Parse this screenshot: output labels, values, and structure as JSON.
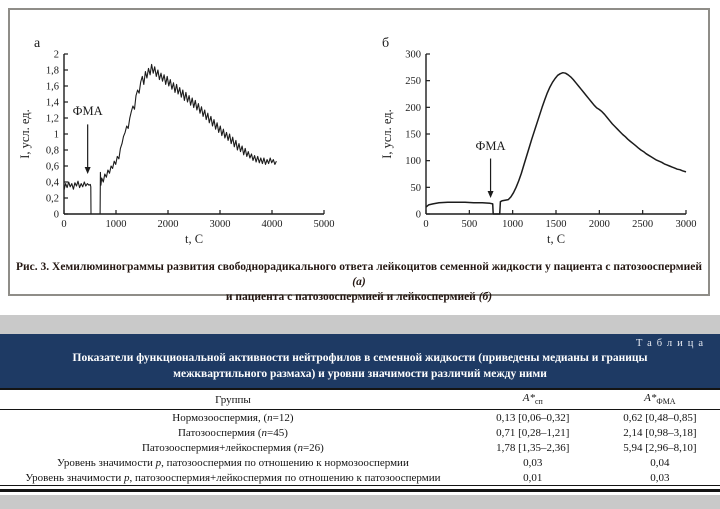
{
  "figure": {
    "caption_part1": "Рис. 3. Хемилюминограммы развития свободнорадикального ответа лейкоцитов семенной жидкости у пациента с патозооспермией ",
    "caption_a": "(а)",
    "caption_part2": "и пациента с патозооспермией и лейкоспермией ",
    "caption_b": "(б)"
  },
  "chart_data": [
    {
      "panel_label": "а",
      "type": "line",
      "xlabel": "t, C",
      "ylabel": "I, усл. ед.",
      "xlim": [
        0,
        5000
      ],
      "ylim": [
        0,
        2
      ],
      "xticks": [
        0,
        1000,
        2000,
        3000,
        4000,
        5000
      ],
      "xtick_labels": [
        "0",
        "1000",
        "2000",
        "3000",
        "4000",
        "5000"
      ],
      "yticks": [
        0,
        0.2,
        0.4,
        0.6,
        0.8,
        1,
        1.2,
        1.4,
        1.6,
        1.8,
        2
      ],
      "ytick_labels": [
        "0",
        "0,2",
        "0,4",
        "0,6",
        "0,8",
        "1",
        "1,2",
        "1,4",
        "1,6",
        "1,8",
        "2"
      ],
      "legend": "off",
      "grid": "off",
      "stroke_width": 1.1,
      "annotation": {
        "text": "ФМА",
        "x": 455,
        "label_y": 1.24,
        "arrow_top_y": 1.12,
        "arrow_tip_y": 0.5
      },
      "series": [
        {
          "name": "хемилюминограмма пациента с патозооспермией",
          "points": [
            [
              0,
              0.3
            ],
            [
              30,
              0.38
            ],
            [
              60,
              0.33
            ],
            [
              90,
              0.4
            ],
            [
              120,
              0.34
            ],
            [
              150,
              0.38
            ],
            [
              180,
              0.31
            ],
            [
              210,
              0.39
            ],
            [
              240,
              0.35
            ],
            [
              270,
              0.41
            ],
            [
              300,
              0.33
            ],
            [
              330,
              0.38
            ],
            [
              360,
              0.34
            ],
            [
              390,
              0.4
            ],
            [
              420,
              0.35
            ],
            [
              450,
              0.38
            ],
            [
              480,
              0.36
            ],
            [
              505,
              0.37
            ],
            [
              515,
              0.34
            ],
            [
              520,
              0
            ],
            [
              695,
              0
            ],
            [
              700,
              0.52
            ],
            [
              710,
              0.36
            ],
            [
              725,
              0.45
            ],
            [
              755,
              0.4
            ],
            [
              785,
              0.5
            ],
            [
              815,
              0.46
            ],
            [
              845,
              0.55
            ],
            [
              875,
              0.51
            ],
            [
              905,
              0.6
            ],
            [
              935,
              0.57
            ],
            [
              965,
              0.66
            ],
            [
              995,
              0.62
            ],
            [
              1025,
              0.72
            ],
            [
              1055,
              0.69
            ],
            [
              1085,
              0.82
            ],
            [
              1115,
              0.88
            ],
            [
              1145,
              0.97
            ],
            [
              1175,
              1.02
            ],
            [
              1205,
              1.1
            ],
            [
              1235,
              1.07
            ],
            [
              1265,
              1.2
            ],
            [
              1295,
              1.28
            ],
            [
              1325,
              1.35
            ],
            [
              1355,
              1.31
            ],
            [
              1385,
              1.48
            ],
            [
              1415,
              1.55
            ],
            [
              1445,
              1.51
            ],
            [
              1475,
              1.65
            ],
            [
              1505,
              1.72
            ],
            [
              1535,
              1.62
            ],
            [
              1565,
              1.78
            ],
            [
              1595,
              1.7
            ],
            [
              1625,
              1.82
            ],
            [
              1655,
              1.74
            ],
            [
              1685,
              1.87
            ],
            [
              1715,
              1.76
            ],
            [
              1745,
              1.84
            ],
            [
              1775,
              1.72
            ],
            [
              1805,
              1.8
            ],
            [
              1835,
              1.68
            ],
            [
              1865,
              1.76
            ],
            [
              1895,
              1.66
            ],
            [
              1925,
              1.74
            ],
            [
              1955,
              1.62
            ],
            [
              1985,
              1.72
            ],
            [
              2015,
              1.6
            ],
            [
              2045,
              1.68
            ],
            [
              2075,
              1.56
            ],
            [
              2105,
              1.64
            ],
            [
              2135,
              1.52
            ],
            [
              2165,
              1.62
            ],
            [
              2195,
              1.5
            ],
            [
              2225,
              1.58
            ],
            [
              2255,
              1.46
            ],
            [
              2285,
              1.55
            ],
            [
              2315,
              1.42
            ],
            [
              2345,
              1.52
            ],
            [
              2375,
              1.4
            ],
            [
              2405,
              1.48
            ],
            [
              2435,
              1.36
            ],
            [
              2465,
              1.45
            ],
            [
              2495,
              1.33
            ],
            [
              2525,
              1.42
            ],
            [
              2555,
              1.3
            ],
            [
              2585,
              1.38
            ],
            [
              2615,
              1.26
            ],
            [
              2645,
              1.34
            ],
            [
              2675,
              1.22
            ],
            [
              2705,
              1.3
            ],
            [
              2735,
              1.18
            ],
            [
              2765,
              1.26
            ],
            [
              2795,
              1.14
            ],
            [
              2825,
              1.22
            ],
            [
              2855,
              1.1
            ],
            [
              2885,
              1.18
            ],
            [
              2915,
              1.06
            ],
            [
              2945,
              1.14
            ],
            [
              2975,
              1.02
            ],
            [
              3005,
              1.1
            ],
            [
              3035,
              0.98
            ],
            [
              3065,
              1.06
            ],
            [
              3095,
              0.95
            ],
            [
              3125,
              1.02
            ],
            [
              3155,
              0.92
            ],
            [
              3185,
              1.0
            ],
            [
              3215,
              0.88
            ],
            [
              3245,
              0.96
            ],
            [
              3275,
              0.84
            ],
            [
              3305,
              0.92
            ],
            [
              3335,
              0.8
            ],
            [
              3365,
              0.88
            ],
            [
              3395,
              0.78
            ],
            [
              3425,
              0.85
            ],
            [
              3455,
              0.74
            ],
            [
              3485,
              0.82
            ],
            [
              3515,
              0.72
            ],
            [
              3545,
              0.78
            ],
            [
              3575,
              0.7
            ],
            [
              3605,
              0.75
            ],
            [
              3635,
              0.67
            ],
            [
              3665,
              0.73
            ],
            [
              3695,
              0.65
            ],
            [
              3725,
              0.72
            ],
            [
              3755,
              0.64
            ],
            [
              3785,
              0.7
            ],
            [
              3815,
              0.63
            ],
            [
              3845,
              0.7
            ],
            [
              3875,
              0.62
            ],
            [
              3905,
              0.68
            ],
            [
              3935,
              0.63
            ],
            [
              3965,
              0.7
            ],
            [
              3995,
              0.64
            ],
            [
              4025,
              0.68
            ],
            [
              4055,
              0.62
            ],
            [
              4085,
              0.66
            ]
          ]
        }
      ]
    },
    {
      "panel_label": "б",
      "type": "line",
      "xlabel": "t, C",
      "ylabel": "I, усл. ед.",
      "xlim": [
        0,
        3000
      ],
      "ylim": [
        0,
        300
      ],
      "xticks": [
        0,
        500,
        1000,
        1500,
        2000,
        2500,
        3000
      ],
      "xtick_labels": [
        "0",
        "500",
        "1000",
        "1500",
        "2000",
        "2500",
        "3000"
      ],
      "yticks": [
        0,
        50,
        100,
        150,
        200,
        250,
        300
      ],
      "ytick_labels": [
        "0",
        "50",
        "100",
        "150",
        "200",
        "250",
        "300"
      ],
      "legend": "off",
      "grid": "off",
      "stroke_width": 1.5,
      "annotation": {
        "text": "ФМА",
        "x": 745,
        "label_y": 120,
        "arrow_top_y": 104,
        "arrow_tip_y": 30
      },
      "series": [
        {
          "name": "хемилюминограмма пациента с патозооспермией и лейкоспермией",
          "points": [
            [
              0,
              13
            ],
            [
              30,
              17
            ],
            [
              80,
              19
            ],
            [
              150,
              21
            ],
            [
              250,
              22
            ],
            [
              350,
              22
            ],
            [
              450,
              22
            ],
            [
              550,
              21
            ],
            [
              650,
              21
            ],
            [
              740,
              20
            ],
            [
              770,
              19
            ],
            [
              775,
              0
            ],
            [
              850,
              0
            ],
            [
              858,
              23
            ],
            [
              880,
              25
            ],
            [
              920,
              26
            ],
            [
              950,
              27
            ],
            [
              980,
              32
            ],
            [
              1010,
              40
            ],
            [
              1040,
              50
            ],
            [
              1070,
              62
            ],
            [
              1100,
              76
            ],
            [
              1130,
              92
            ],
            [
              1160,
              108
            ],
            [
              1190,
              124
            ],
            [
              1220,
              140
            ],
            [
              1250,
              155
            ],
            [
              1280,
              170
            ],
            [
              1310,
              185
            ],
            [
              1340,
              200
            ],
            [
              1370,
              214
            ],
            [
              1400,
              227
            ],
            [
              1430,
              238
            ],
            [
              1460,
              247
            ],
            [
              1490,
              254
            ],
            [
              1520,
              260
            ],
            [
              1550,
              263
            ],
            [
              1580,
              265
            ],
            [
              1610,
              264
            ],
            [
              1640,
              261
            ],
            [
              1670,
              257
            ],
            [
              1700,
              252
            ],
            [
              1730,
              246
            ],
            [
              1760,
              240
            ],
            [
              1790,
              234
            ],
            [
              1820,
              228
            ],
            [
              1850,
              222
            ],
            [
              1880,
              216
            ],
            [
              1910,
              210
            ],
            [
              1940,
              204
            ],
            [
              1970,
              199
            ],
            [
              2000,
              196
            ],
            [
              2030,
              192
            ],
            [
              2060,
              187
            ],
            [
              2090,
              181
            ],
            [
              2120,
              175
            ],
            [
              2150,
              169
            ],
            [
              2180,
              164
            ],
            [
              2210,
              159
            ],
            [
              2240,
              154
            ],
            [
              2270,
              149
            ],
            [
              2300,
              145
            ],
            [
              2330,
              140
            ],
            [
              2360,
              136
            ],
            [
              2390,
              132
            ],
            [
              2420,
              128
            ],
            [
              2450,
              124
            ],
            [
              2480,
              120
            ],
            [
              2510,
              117
            ],
            [
              2540,
              113
            ],
            [
              2570,
              110
            ],
            [
              2600,
              107
            ],
            [
              2630,
              104
            ],
            [
              2660,
              101
            ],
            [
              2690,
              99
            ],
            [
              2720,
              97
            ],
            [
              2750,
              94
            ],
            [
              2780,
              92
            ],
            [
              2810,
              90
            ],
            [
              2840,
              88
            ],
            [
              2870,
              86
            ],
            [
              2900,
              84
            ],
            [
              2930,
              83
            ],
            [
              2960,
              81
            ],
            [
              3000,
              79
            ]
          ]
        }
      ]
    }
  ],
  "table": {
    "corner_label": "Таблица",
    "title_line1": "Показатели функциональной активности нейтрофилов в семенной жидкости (приведены медианы и границы",
    "title_line2": "межквартильного размаха) и уровни значимости различий между ними",
    "header": {
      "col1": "Группы",
      "col2_base": "A*",
      "col2_sub": "сп",
      "col3_base": "A*",
      "col3_sub": "ФМА"
    },
    "rows": [
      {
        "label": "Нормозооспермия, (n=12)",
        "sp": "0,13 [0,06–0,32]",
        "fma": "0,62 [0,48–0,85]"
      },
      {
        "label": "Патозооспермия (n=45)",
        "sp": "0,71 [0,28–1,21]",
        "fma": "2,14 [0,98–3,18]"
      },
      {
        "label": "Патозооспермия+лейкоспермия (n=26)",
        "sp": "1,78 [1,35–2,36]",
        "fma": "5,94 [2,96–8,10]"
      },
      {
        "label": "Уровень значимости p, патозооспермия по отношению к нормозооспермии",
        "sp": "0,03",
        "fma": "0,04"
      },
      {
        "label": "Уровень значимости p, патозооспермия+лейкоспермия по отношению к патозооспермии",
        "sp": "0,01",
        "fma": "0,03"
      }
    ]
  },
  "colors": {
    "navy_band": "#1e3a64",
    "gray_strip": "#c9c9c9",
    "curve": "#1c1c1c",
    "caption_text": "#241712"
  }
}
